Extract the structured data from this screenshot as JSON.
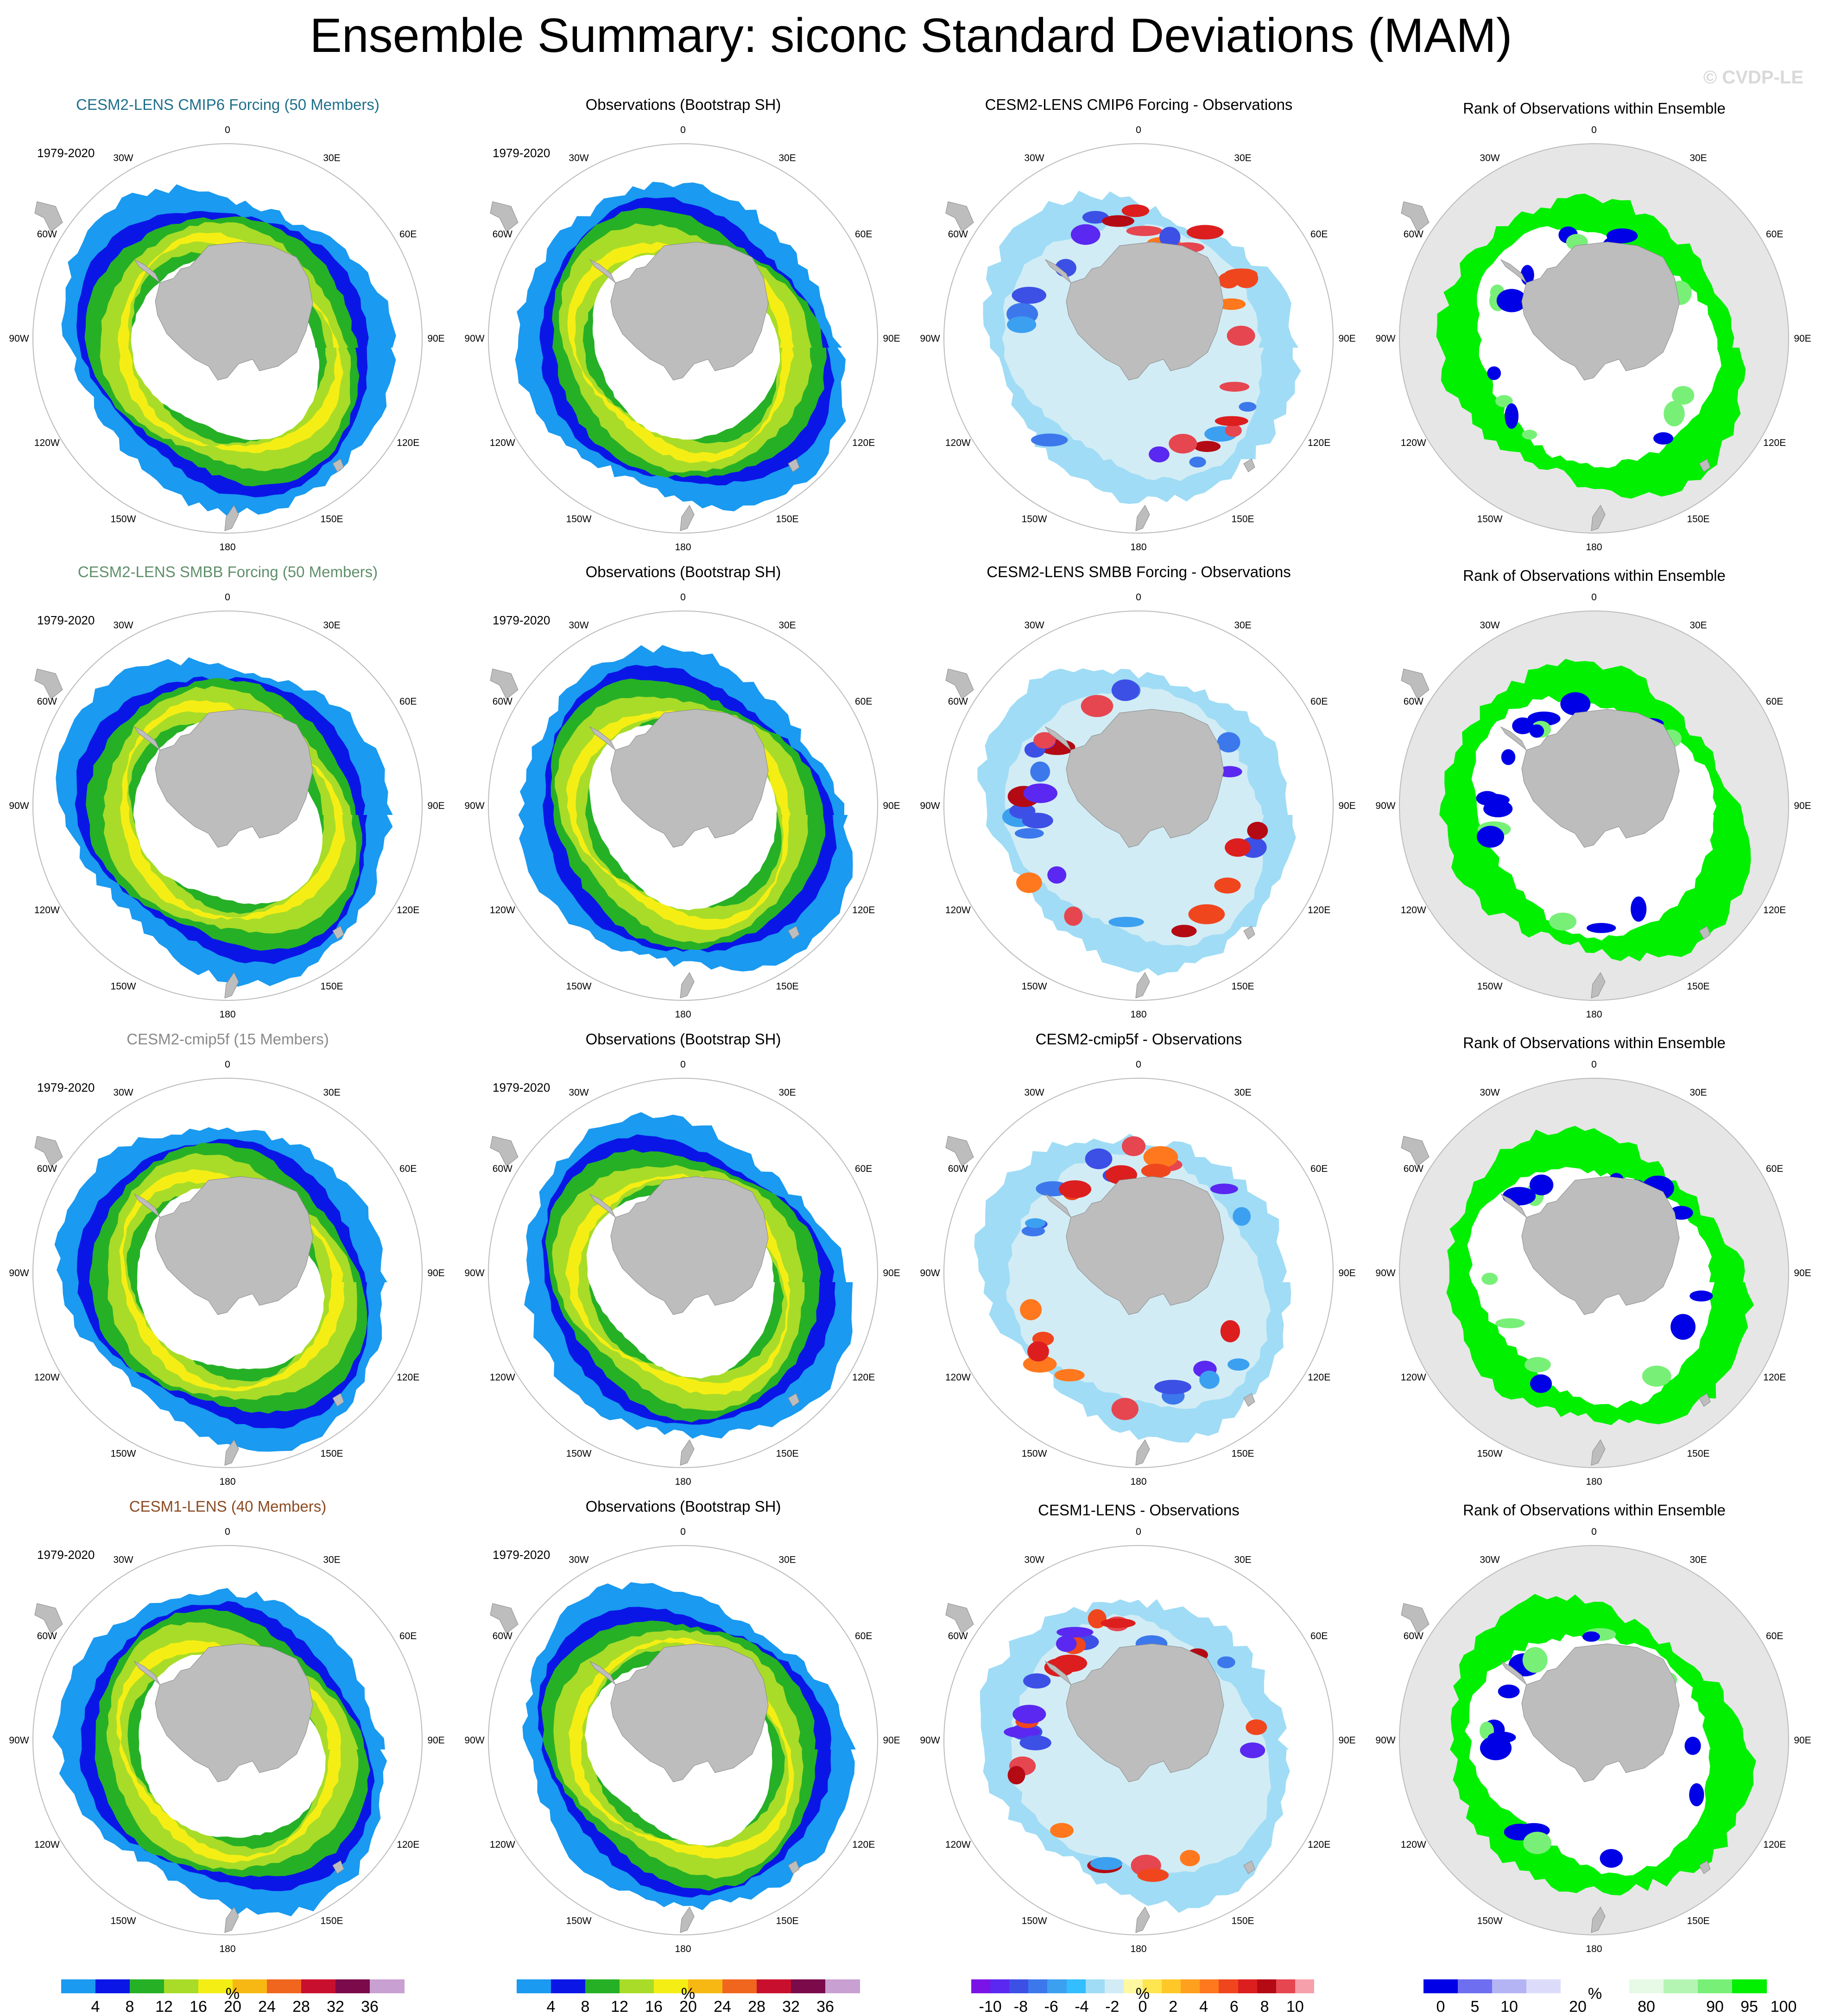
{
  "title": "Ensemble Summary: siconc Standard Deviations (MAM)",
  "watermark": "© CVDP-LE",
  "period": "1979-2020",
  "lon_labels": [
    "0",
    "30E",
    "60E",
    "90E",
    "120E",
    "150E",
    "180",
    "150W",
    "120W",
    "90W",
    "60W",
    "30W"
  ],
  "colors": {
    "model_cmip6": "#1f6f8b",
    "model_smbb": "#5f8f6a",
    "model_cmip5f": "#8a8a8a",
    "model_cesm1": "#8b4a22",
    "land": "#bdbdbd",
    "rank_bg": "#e6e6e6"
  },
  "rows": [
    {
      "model_title": "CESM2-LENS CMIP6 Forcing (50 Members)",
      "model_color_key": "model_cmip6",
      "obs_title": "Observations (Bootstrap SH)",
      "diff_title": "CESM2-LENS CMIP6 Forcing - Observations",
      "rank_title": "Rank of Observations within Ensemble"
    },
    {
      "model_title": "CESM2-LENS SMBB Forcing (50 Members)",
      "model_color_key": "model_smbb",
      "obs_title": "Observations (Bootstrap SH)",
      "diff_title": "CESM2-LENS SMBB Forcing - Observations",
      "rank_title": "Rank of Observations within Ensemble"
    },
    {
      "model_title": "CESM2-cmip5f (15 Members)",
      "model_color_key": "model_cmip5f",
      "obs_title": "Observations (Bootstrap SH)",
      "diff_title": "CESM2-cmip5f - Observations",
      "rank_title": "Rank of Observations within Ensemble"
    },
    {
      "model_title": "CESM1-LENS (40 Members)",
      "model_color_key": "model_cesm1",
      "obs_title": "Observations (Bootstrap SH)",
      "diff_title": "CESM1-LENS - Observations",
      "rank_title": "Rank of Observations within Ensemble"
    }
  ],
  "colorbars": {
    "std": {
      "labels": [
        "4",
        "8",
        "12",
        "16",
        "20",
        "24",
        "28",
        "32",
        "36"
      ],
      "colors": [
        "#1a9af0",
        "#0a16e6",
        "#26b026",
        "#a8dc28",
        "#f5ee14",
        "#f7b814",
        "#f0661e",
        "#c8102e",
        "#7a0a4a",
        "#c8a0d2"
      ],
      "unit": "%"
    },
    "diff": {
      "labels": [
        "-10",
        "-8",
        "-6",
        "-4",
        "-2",
        "0",
        "2",
        "4",
        "6",
        "8",
        "10"
      ],
      "colors": [
        "#7a14e6",
        "#5a28f0",
        "#3c50e6",
        "#3c78ec",
        "#3ca0f0",
        "#32beff",
        "#a0dcf5",
        "#d2ecf5",
        "#fff8a0",
        "#ffe650",
        "#ffc828",
        "#ffa01e",
        "#ff781e",
        "#f0461e",
        "#dc1e1e",
        "#b40a14",
        "#e64650",
        "#f5a0aa"
      ],
      "unit": "%"
    },
    "rank": {
      "labels": [
        "0",
        "5",
        "10",
        "20",
        "80",
        "90",
        "95",
        "100"
      ],
      "label_positions": [
        0,
        1,
        2,
        4,
        6,
        8,
        9,
        10
      ],
      "colors": [
        "#0000e6",
        "#6e6ef0",
        "#b4b4f5",
        "#dcdcfa",
        "#ffffff",
        "#ffffff",
        "#e6fae6",
        "#b4f5b4",
        "#78f078",
        "#00f000"
      ],
      "unit": "%"
    }
  }
}
